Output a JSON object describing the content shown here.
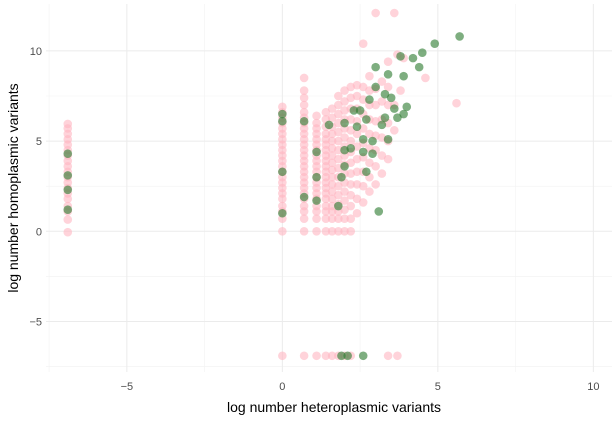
{
  "chart_data": {
    "type": "scatter",
    "title": "",
    "xlabel": "log number heteroplasmic variants",
    "ylabel": "log number homoplasmic variants",
    "xlim": [
      -7.6,
      10.6
    ],
    "ylim": [
      -7.8,
      12.6
    ],
    "x_ticks": [
      -5,
      0,
      5,
      10
    ],
    "y_ticks": [
      -5,
      0,
      5,
      10
    ],
    "x_minor": [
      -7.5,
      -2.5,
      2.5,
      7.5
    ],
    "y_minor": [
      -7.5,
      -2.5,
      2.5,
      7.5
    ],
    "grid": true,
    "legend": "none",
    "colors": {
      "pink": "#ffb6c1",
      "green": "#2e7d32"
    },
    "series": [
      {
        "color_key": "pink",
        "points": [
          [
            -6.9,
            -0.05
          ],
          [
            -6.9,
            0.65
          ],
          [
            -6.9,
            1.1
          ],
          [
            -6.9,
            1.4
          ],
          [
            -6.9,
            1.8
          ],
          [
            -6.9,
            2.1
          ],
          [
            -6.9,
            2.4
          ],
          [
            -6.9,
            2.7
          ],
          [
            -6.9,
            3.0
          ],
          [
            -6.9,
            3.3
          ],
          [
            -6.9,
            3.6
          ],
          [
            -6.9,
            3.9
          ],
          [
            -6.9,
            4.2
          ],
          [
            -6.9,
            4.5
          ],
          [
            -6.9,
            4.8
          ],
          [
            -6.9,
            5.1
          ],
          [
            -6.9,
            5.4
          ],
          [
            -6.9,
            5.7
          ],
          [
            -6.9,
            5.95
          ],
          [
            0,
            -6.9
          ],
          [
            0.7,
            -6.9
          ],
          [
            1.1,
            -6.9
          ],
          [
            1.4,
            -6.9
          ],
          [
            1.6,
            -6.9
          ],
          [
            1.8,
            -6.9
          ],
          [
            2.0,
            -6.9
          ],
          [
            2.2,
            -6.9
          ],
          [
            3.4,
            -6.9
          ],
          [
            3.7,
            -6.9
          ],
          [
            0,
            0
          ],
          [
            0,
            0.7
          ],
          [
            0,
            1.1
          ],
          [
            0,
            1.4
          ],
          [
            0,
            1.8
          ],
          [
            0,
            2.1
          ],
          [
            0,
            2.4
          ],
          [
            0,
            2.7
          ],
          [
            0,
            3.0
          ],
          [
            0,
            3.3
          ],
          [
            0,
            3.6
          ],
          [
            0,
            3.9
          ],
          [
            0,
            4.2
          ],
          [
            0,
            4.5
          ],
          [
            0,
            4.8
          ],
          [
            0,
            5.1
          ],
          [
            0,
            5.4
          ],
          [
            0,
            5.7
          ],
          [
            0,
            6.0
          ],
          [
            0,
            6.3
          ],
          [
            0,
            6.6
          ],
          [
            0,
            6.9
          ],
          [
            0.7,
            0
          ],
          [
            0.7,
            0.7
          ],
          [
            0.7,
            1.1
          ],
          [
            0.7,
            1.4
          ],
          [
            0.7,
            1.8
          ],
          [
            0.7,
            2.1
          ],
          [
            0.7,
            2.4
          ],
          [
            0.7,
            2.7
          ],
          [
            0.7,
            3.0
          ],
          [
            0.7,
            3.3
          ],
          [
            0.7,
            3.6
          ],
          [
            0.7,
            3.9
          ],
          [
            0.7,
            4.2
          ],
          [
            0.7,
            4.5
          ],
          [
            0.7,
            4.8
          ],
          [
            0.7,
            5.1
          ],
          [
            0.7,
            5.4
          ],
          [
            0.7,
            5.7
          ],
          [
            0.7,
            6.0
          ],
          [
            0.7,
            6.3
          ],
          [
            0.7,
            6.6
          ],
          [
            0.7,
            7.0
          ],
          [
            0.7,
            7.4
          ],
          [
            0.7,
            7.8
          ],
          [
            0.7,
            8.5
          ],
          [
            1.1,
            0
          ],
          [
            1.1,
            0.7
          ],
          [
            1.1,
            1.1
          ],
          [
            1.1,
            1.4
          ],
          [
            1.1,
            1.8
          ],
          [
            1.1,
            2.1
          ],
          [
            1.1,
            2.4
          ],
          [
            1.1,
            2.7
          ],
          [
            1.1,
            3.0
          ],
          [
            1.1,
            3.3
          ],
          [
            1.1,
            3.6
          ],
          [
            1.1,
            3.9
          ],
          [
            1.1,
            4.2
          ],
          [
            1.1,
            4.5
          ],
          [
            1.1,
            4.8
          ],
          [
            1.1,
            5.1
          ],
          [
            1.1,
            5.4
          ],
          [
            1.1,
            5.7
          ],
          [
            1.1,
            6.0
          ],
          [
            1.1,
            6.4
          ],
          [
            1.4,
            0
          ],
          [
            1.4,
            0.7
          ],
          [
            1.4,
            1.1
          ],
          [
            1.4,
            1.4
          ],
          [
            1.4,
            1.8
          ],
          [
            1.4,
            2.1
          ],
          [
            1.4,
            2.4
          ],
          [
            1.4,
            2.7
          ],
          [
            1.4,
            3.0
          ],
          [
            1.4,
            3.3
          ],
          [
            1.4,
            3.6
          ],
          [
            1.4,
            3.9
          ],
          [
            1.4,
            4.2
          ],
          [
            1.4,
            4.5
          ],
          [
            1.4,
            4.8
          ],
          [
            1.4,
            5.1
          ],
          [
            1.4,
            5.4
          ],
          [
            1.4,
            5.8
          ],
          [
            1.4,
            6.2
          ],
          [
            1.4,
            6.6
          ],
          [
            1.6,
            0
          ],
          [
            1.6,
            0.7
          ],
          [
            1.6,
            1.1
          ],
          [
            1.6,
            1.4
          ],
          [
            1.6,
            1.8
          ],
          [
            1.6,
            2.2
          ],
          [
            1.6,
            2.6
          ],
          [
            1.6,
            3.0
          ],
          [
            1.6,
            3.4
          ],
          [
            1.6,
            3.8
          ],
          [
            1.6,
            4.2
          ],
          [
            1.6,
            4.6
          ],
          [
            1.6,
            5.0
          ],
          [
            1.6,
            5.4
          ],
          [
            1.6,
            5.8
          ],
          [
            1.6,
            6.3
          ],
          [
            1.6,
            6.8
          ],
          [
            1.8,
            0
          ],
          [
            1.8,
            0.7
          ],
          [
            1.8,
            1.1
          ],
          [
            1.8,
            1.5
          ],
          [
            1.8,
            2.0
          ],
          [
            1.8,
            2.5
          ],
          [
            1.8,
            3.0
          ],
          [
            1.8,
            3.5
          ],
          [
            1.8,
            4.0
          ],
          [
            1.8,
            4.5
          ],
          [
            1.8,
            5.0
          ],
          [
            1.8,
            5.5
          ],
          [
            1.8,
            6.0
          ],
          [
            1.8,
            6.5
          ],
          [
            1.8,
            7.0
          ],
          [
            1.8,
            7.5
          ],
          [
            2.0,
            0
          ],
          [
            2.0,
            0.7
          ],
          [
            2.0,
            1.2
          ],
          [
            2.0,
            1.7
          ],
          [
            2.0,
            2.2
          ],
          [
            2.0,
            2.7
          ],
          [
            2.0,
            3.2
          ],
          [
            2.0,
            3.7
          ],
          [
            2.0,
            4.2
          ],
          [
            2.0,
            4.7
          ],
          [
            2.0,
            5.2
          ],
          [
            2.0,
            5.7
          ],
          [
            2.0,
            6.2
          ],
          [
            2.0,
            6.7
          ],
          [
            2.0,
            7.2
          ],
          [
            2.0,
            7.8
          ],
          [
            2.2,
            0
          ],
          [
            2.2,
            0.7
          ],
          [
            2.2,
            1.4
          ],
          [
            2.2,
            2.0
          ],
          [
            2.2,
            2.6
          ],
          [
            2.2,
            3.2
          ],
          [
            2.2,
            3.8
          ],
          [
            2.2,
            4.4
          ],
          [
            2.2,
            5.0
          ],
          [
            2.2,
            5.6
          ],
          [
            2.2,
            6.2
          ],
          [
            2.2,
            6.8
          ],
          [
            2.2,
            7.4
          ],
          [
            2.2,
            8.0
          ],
          [
            2.4,
            1.0
          ],
          [
            2.4,
            1.8
          ],
          [
            2.4,
            2.6
          ],
          [
            2.4,
            3.3
          ],
          [
            2.4,
            4.0
          ],
          [
            2.4,
            4.7
          ],
          [
            2.4,
            5.4
          ],
          [
            2.4,
            6.1
          ],
          [
            2.4,
            6.8
          ],
          [
            2.4,
            7.5
          ],
          [
            2.4,
            8.1
          ],
          [
            2.6,
            1.6
          ],
          [
            2.6,
            2.5
          ],
          [
            2.6,
            3.3
          ],
          [
            2.6,
            4.1
          ],
          [
            2.6,
            4.9
          ],
          [
            2.6,
            5.7
          ],
          [
            2.6,
            6.5
          ],
          [
            2.6,
            7.3
          ],
          [
            2.6,
            8.0
          ],
          [
            2.6,
            10.4
          ],
          [
            2.8,
            2.2
          ],
          [
            2.8,
            3.0
          ],
          [
            2.8,
            3.8
          ],
          [
            2.8,
            4.6
          ],
          [
            2.8,
            5.4
          ],
          [
            2.8,
            6.2
          ],
          [
            2.8,
            7.0
          ],
          [
            2.8,
            7.8
          ],
          [
            2.8,
            8.6
          ],
          [
            3.0,
            2.6
          ],
          [
            3.0,
            3.6
          ],
          [
            3.0,
            4.5
          ],
          [
            3.0,
            5.3
          ],
          [
            3.0,
            6.1
          ],
          [
            3.0,
            7.0
          ],
          [
            3.0,
            7.9
          ],
          [
            3.0,
            12.1
          ],
          [
            3.2,
            3.2
          ],
          [
            3.2,
            4.2
          ],
          [
            3.2,
            5.2
          ],
          [
            3.2,
            6.2
          ],
          [
            3.2,
            7.2
          ],
          [
            3.2,
            8.3
          ],
          [
            3.4,
            4.0
          ],
          [
            3.4,
            5.0
          ],
          [
            3.4,
            6.0
          ],
          [
            3.4,
            7.0
          ],
          [
            3.4,
            8.0
          ],
          [
            3.4,
            9.4
          ],
          [
            3.6,
            5.6
          ],
          [
            3.6,
            7.0
          ],
          [
            3.6,
            12.1
          ],
          [
            3.7,
            9.8
          ],
          [
            3.8,
            7.8
          ],
          [
            3.9,
            9.6
          ],
          [
            4.6,
            8.5
          ],
          [
            5.6,
            7.1
          ]
        ]
      },
      {
        "color_key": "green",
        "points": [
          [
            -6.9,
            1.2
          ],
          [
            -6.9,
            2.3
          ],
          [
            -6.9,
            3.1
          ],
          [
            -6.9,
            4.3
          ],
          [
            1.9,
            -6.9
          ],
          [
            2.1,
            -6.9
          ],
          [
            2.6,
            -6.9
          ],
          [
            0,
            1.0
          ],
          [
            0,
            3.3
          ],
          [
            0,
            6.1
          ],
          [
            0,
            6.5
          ],
          [
            0.7,
            1.9
          ],
          [
            0.7,
            6.1
          ],
          [
            1.1,
            1.7
          ],
          [
            1.1,
            3.0
          ],
          [
            1.1,
            4.4
          ],
          [
            1.5,
            5.9
          ],
          [
            1.8,
            1.4
          ],
          [
            1.9,
            3.0
          ],
          [
            2.0,
            3.6
          ],
          [
            2.0,
            4.5
          ],
          [
            2.0,
            6.0
          ],
          [
            2.2,
            4.6
          ],
          [
            2.3,
            6.7
          ],
          [
            2.4,
            5.8
          ],
          [
            2.5,
            6.7
          ],
          [
            2.6,
            4.4
          ],
          [
            2.6,
            5.1
          ],
          [
            2.7,
            3.3
          ],
          [
            2.7,
            6.2
          ],
          [
            2.8,
            7.3
          ],
          [
            2.9,
            4.3
          ],
          [
            2.9,
            5.0
          ],
          [
            3.0,
            8.0
          ],
          [
            3.0,
            9.1
          ],
          [
            3.1,
            1.1
          ],
          [
            3.2,
            5.9
          ],
          [
            3.3,
            6.3
          ],
          [
            3.3,
            7.6
          ],
          [
            3.4,
            5.1
          ],
          [
            3.4,
            8.7
          ],
          [
            3.5,
            7.4
          ],
          [
            3.6,
            6.8
          ],
          [
            3.7,
            6.3
          ],
          [
            3.8,
            9.7
          ],
          [
            3.9,
            6.5
          ],
          [
            3.9,
            8.6
          ],
          [
            4.0,
            6.9
          ],
          [
            4.2,
            9.6
          ],
          [
            4.4,
            9.1
          ],
          [
            4.5,
            9.9
          ],
          [
            4.9,
            10.4
          ],
          [
            5.7,
            10.8
          ]
        ]
      }
    ]
  }
}
